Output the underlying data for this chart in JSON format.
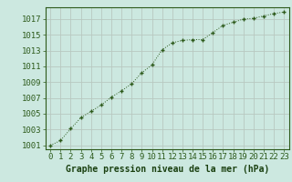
{
  "x": [
    0,
    1,
    2,
    3,
    4,
    5,
    6,
    7,
    8,
    9,
    10,
    11,
    12,
    13,
    14,
    15,
    16,
    17,
    18,
    19,
    20,
    21,
    22,
    23
  ],
  "y": [
    1001.0,
    1001.6,
    1003.1,
    1004.5,
    1005.3,
    1006.1,
    1007.1,
    1007.9,
    1008.8,
    1010.2,
    1011.2,
    1013.1,
    1014.0,
    1014.3,
    1014.4,
    1014.4,
    1015.3,
    1016.2,
    1016.6,
    1017.0,
    1017.1,
    1017.4,
    1017.7,
    1017.9
  ],
  "line_color": "#2d5a1b",
  "marker": "P",
  "marker_size": 3.5,
  "bg_color": "#cce8e0",
  "grid_color": "#b8c8c0",
  "xlabel": "Graphe pression niveau de la mer (hPa)",
  "xlabel_color": "#1a4010",
  "ylim": [
    1000.5,
    1018.5
  ],
  "yticks": [
    1001,
    1003,
    1005,
    1007,
    1009,
    1011,
    1013,
    1015,
    1017
  ],
  "xlim": [
    -0.5,
    23.5
  ],
  "xticks": [
    0,
    1,
    2,
    3,
    4,
    5,
    6,
    7,
    8,
    9,
    10,
    11,
    12,
    13,
    14,
    15,
    16,
    17,
    18,
    19,
    20,
    21,
    22,
    23
  ],
  "tick_color": "#2d5a1b",
  "axis_color": "#2d5a1b",
  "font_size_xlabel": 7,
  "font_size_ticks": 6.5
}
